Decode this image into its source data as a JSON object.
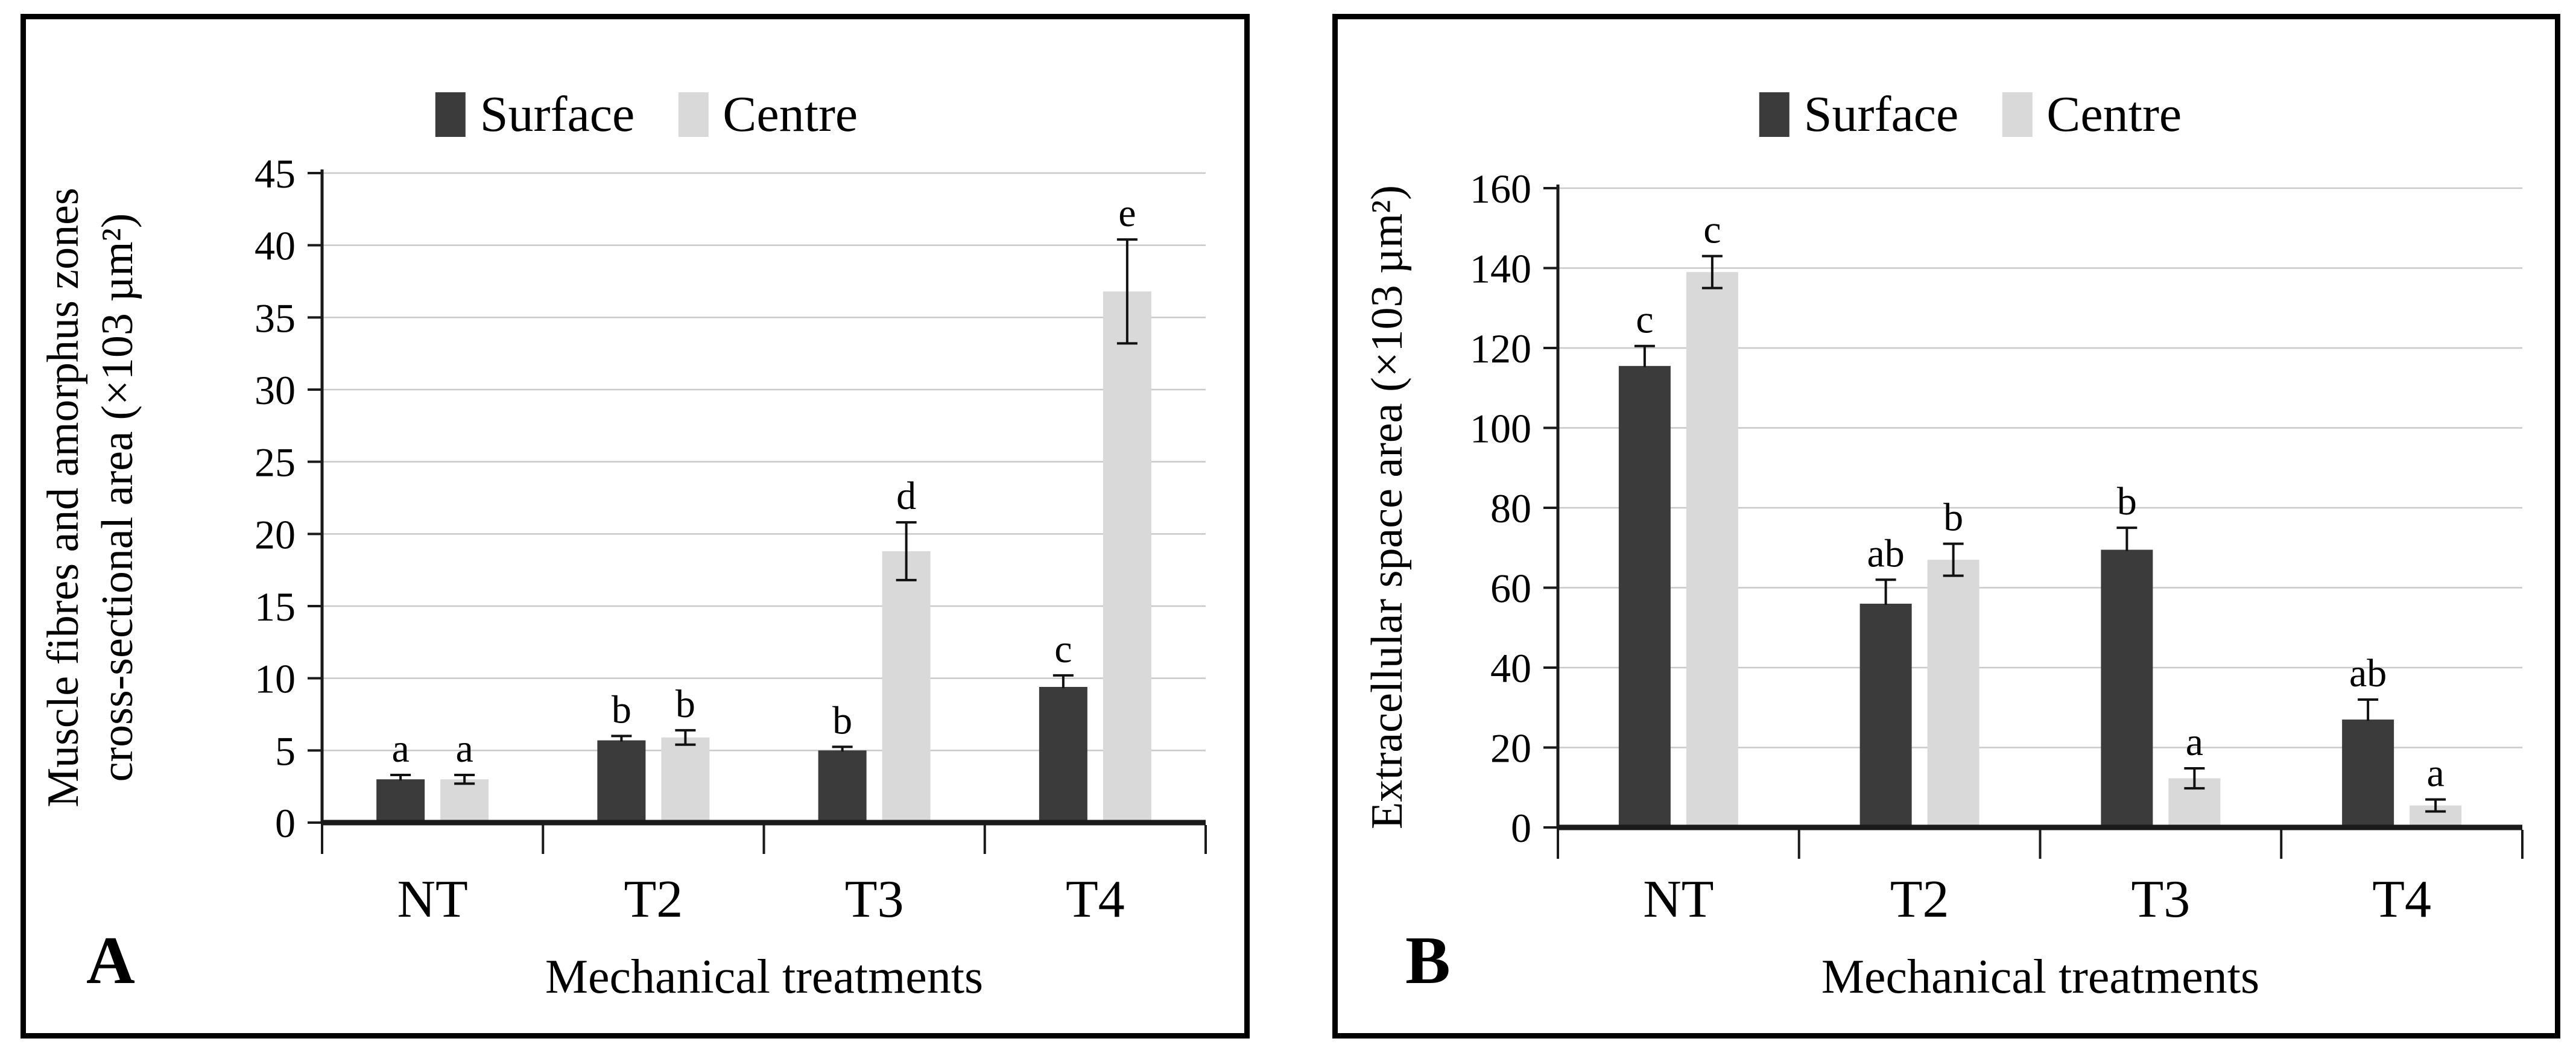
{
  "figure": {
    "background_color": "#ffffff",
    "series_colors": {
      "surface": "#3b3b3b",
      "centre": "#d9d9d9"
    }
  },
  "chart_data": [
    {
      "type": "bar",
      "panel_label": "A",
      "ylabel_line1": "Muscle fibres and amorphus zones",
      "ylabel_line2": "cross-sectional area (×103 µm²)",
      "xlabel": "Mechanical treatments",
      "categories": [
        "NT",
        "T2",
        "T3",
        "T4"
      ],
      "ylim": [
        0,
        45
      ],
      "ytick_step": 5,
      "yticks": [
        0,
        5,
        10,
        15,
        20,
        25,
        30,
        35,
        40,
        45
      ],
      "grid": true,
      "legend_position": "top",
      "legend": [
        {
          "label": "Surface",
          "color": "#3b3b3b"
        },
        {
          "label": "Centre",
          "color": "#d9d9d9"
        }
      ],
      "series": [
        {
          "name": "Surface",
          "color": "#3b3b3b",
          "values": [
            3.0,
            5.7,
            5.0,
            9.4
          ],
          "errors": [
            0.3,
            0.3,
            0.25,
            0.8
          ],
          "letters": [
            "a",
            "b",
            "b",
            "c"
          ]
        },
        {
          "name": "Centre",
          "color": "#d9d9d9",
          "values": [
            3.0,
            5.9,
            18.8,
            36.8
          ],
          "errors": [
            0.3,
            0.5,
            2.0,
            3.6
          ],
          "letters": [
            "a",
            "b",
            "d",
            "e"
          ]
        }
      ]
    },
    {
      "type": "bar",
      "panel_label": "B",
      "ylabel_line1": "Extracellular space area (×103 µm²)",
      "xlabel": "Mechanical treatments",
      "categories": [
        "NT",
        "T2",
        "T3",
        "T4"
      ],
      "ylim": [
        0,
        160
      ],
      "ytick_step": 20,
      "yticks": [
        0,
        20,
        40,
        60,
        80,
        100,
        120,
        140,
        160
      ],
      "grid": true,
      "legend_position": "top",
      "legend": [
        {
          "label": "Surface",
          "color": "#3b3b3b"
        },
        {
          "label": "Centre",
          "color": "#d9d9d9"
        }
      ],
      "series": [
        {
          "name": "Surface",
          "color": "#3b3b3b",
          "values": [
            115.5,
            56,
            69.5,
            27
          ],
          "errors": [
            5,
            6,
            5.5,
            5
          ],
          "letters": [
            "c",
            "ab",
            "b",
            "ab"
          ]
        },
        {
          "name": "Centre",
          "color": "#d9d9d9",
          "values": [
            139,
            67,
            12.3,
            5.5
          ],
          "errors": [
            4,
            4,
            2.5,
            1.5
          ],
          "letters": [
            "c",
            "b",
            "a",
            "a"
          ]
        }
      ]
    }
  ]
}
